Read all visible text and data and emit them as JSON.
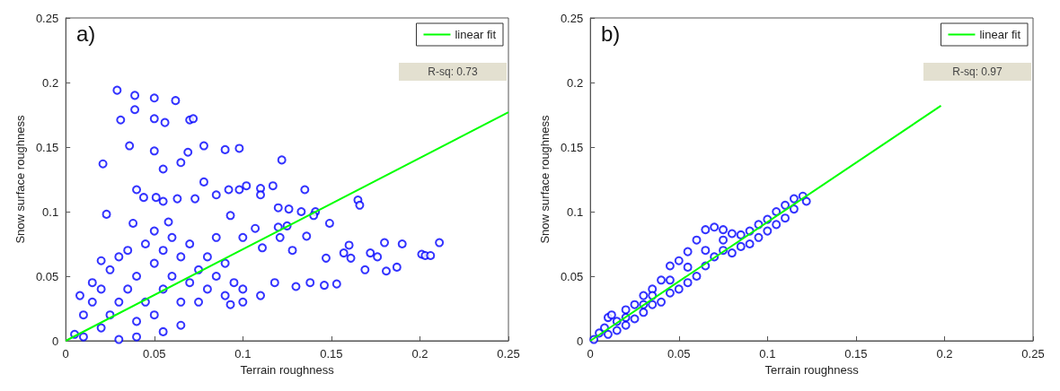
{
  "chart_data": [
    {
      "type": "scatter",
      "title": "a)",
      "xlabel": "Terrain roughness",
      "ylabel": "Snow surface roughness",
      "annotations": [
        "R-sq: 0.73"
      ],
      "xlim": [
        0,
        0.25
      ],
      "ylim": [
        0,
        0.25
      ],
      "xticks": [
        0,
        0.05,
        0.1,
        0.15,
        0.2,
        0.25
      ],
      "yticks": [
        0,
        0.05,
        0.1,
        0.15,
        0.2,
        0.25
      ],
      "grid": false,
      "legend": "top right",
      "series": [
        {
          "type": "scatter",
          "color": "#0000ff",
          "marker": "circle",
          "x": [
            0.029,
            0.039,
            0.05,
            0.062,
            0.039,
            0.031,
            0.05,
            0.056,
            0.07,
            0.072,
            0.036,
            0.05,
            0.069,
            0.078,
            0.09,
            0.098,
            0.021,
            0.055,
            0.065,
            0.122,
            0.078,
            0.04,
            0.044,
            0.051,
            0.055,
            0.063,
            0.073,
            0.085,
            0.092,
            0.098,
            0.102,
            0.11,
            0.11,
            0.117,
            0.135,
            0.165,
            0.166,
            0.023,
            0.038,
            0.12,
            0.126,
            0.133,
            0.141,
            0.14,
            0.149,
            0.093,
            0.16,
            0.18,
            0.19,
            0.201,
            0.203,
            0.211,
            0.206,
            0.172,
            0.176,
            0.169,
            0.181,
            0.187,
            0.147,
            0.157,
            0.161,
            0.146,
            0.153,
            0.138,
            0.13,
            0.136,
            0.128,
            0.121,
            0.111,
            0.107,
            0.12,
            0.125,
            0.1,
            0.1,
            0.11,
            0.118,
            0.1,
            0.093,
            0.065,
            0.055,
            0.04,
            0.03,
            0.005,
            0.01,
            0.01,
            0.015,
            0.02,
            0.02,
            0.025,
            0.025,
            0.03,
            0.03,
            0.035,
            0.035,
            0.04,
            0.04,
            0.045,
            0.045,
            0.05,
            0.05,
            0.055,
            0.055,
            0.06,
            0.06,
            0.065,
            0.065,
            0.07,
            0.07,
            0.075,
            0.075,
            0.08,
            0.08,
            0.085,
            0.085,
            0.09,
            0.09,
            0.095,
            0.015,
            0.02,
            0.008,
            0.05,
            0.058
          ],
          "values": [
            0.194,
            0.19,
            0.188,
            0.186,
            0.179,
            0.171,
            0.172,
            0.169,
            0.171,
            0.172,
            0.151,
            0.147,
            0.146,
            0.151,
            0.148,
            0.149,
            0.137,
            0.133,
            0.138,
            0.14,
            0.123,
            0.117,
            0.111,
            0.111,
            0.108,
            0.11,
            0.11,
            0.113,
            0.117,
            0.117,
            0.12,
            0.118,
            0.113,
            0.12,
            0.117,
            0.109,
            0.105,
            0.098,
            0.091,
            0.103,
            0.102,
            0.1,
            0.1,
            0.097,
            0.091,
            0.097,
            0.074,
            0.076,
            0.075,
            0.067,
            0.066,
            0.076,
            0.066,
            0.068,
            0.065,
            0.055,
            0.054,
            0.057,
            0.064,
            0.068,
            0.064,
            0.043,
            0.044,
            0.045,
            0.042,
            0.081,
            0.07,
            0.08,
            0.072,
            0.087,
            0.088,
            0.089,
            0.08,
            0.04,
            0.035,
            0.045,
            0.03,
            0.028,
            0.012,
            0.007,
            0.003,
            0.001,
            0.005,
            0.02,
            0.003,
            0.03,
            0.01,
            0.04,
            0.02,
            0.055,
            0.03,
            0.065,
            0.04,
            0.07,
            0.015,
            0.05,
            0.075,
            0.03,
            0.06,
            0.02,
            0.07,
            0.04,
            0.05,
            0.08,
            0.03,
            0.065,
            0.045,
            0.075,
            0.055,
            0.03,
            0.065,
            0.04,
            0.05,
            0.08,
            0.06,
            0.035,
            0.045,
            0.045,
            0.062,
            0.035,
            0.085,
            0.092
          ]
        },
        {
          "type": "line",
          "name": "linear fit",
          "color": "#00ff00",
          "marker": "none",
          "x": [
            0,
            0.25
          ],
          "values": [
            0,
            0.177
          ]
        }
      ]
    },
    {
      "type": "scatter",
      "title": "b)",
      "xlabel": "Terrain roughness",
      "ylabel": "Snow surface roughness",
      "annotations": [
        "R-sq: 0.97"
      ],
      "xlim": [
        0,
        0.25
      ],
      "ylim": [
        0,
        0.25
      ],
      "xticks": [
        0,
        0.05,
        0.1,
        0.15,
        0.2,
        0.25
      ],
      "yticks": [
        0,
        0.05,
        0.1,
        0.15,
        0.2,
        0.25
      ],
      "grid": false,
      "legend": "top right",
      "series": [
        {
          "type": "scatter",
          "color": "#0000ff",
          "marker": "circle",
          "x": [
            0.002,
            0.005,
            0.008,
            0.01,
            0.012,
            0.01,
            0.015,
            0.02,
            0.02,
            0.025,
            0.025,
            0.03,
            0.03,
            0.035,
            0.035,
            0.04,
            0.04,
            0.045,
            0.045,
            0.05,
            0.05,
            0.055,
            0.055,
            0.06,
            0.06,
            0.065,
            0.065,
            0.07,
            0.07,
            0.075,
            0.075,
            0.08,
            0.08,
            0.085,
            0.085,
            0.09,
            0.09,
            0.095,
            0.095,
            0.1,
            0.1,
            0.105,
            0.105,
            0.11,
            0.11,
            0.115,
            0.115,
            0.12,
            0.122,
            0.035,
            0.045,
            0.055,
            0.065,
            0.075,
            0.02,
            0.03,
            0.015
          ],
          "values": [
            0.001,
            0.006,
            0.01,
            0.018,
            0.02,
            0.005,
            0.008,
            0.024,
            0.012,
            0.028,
            0.017,
            0.035,
            0.022,
            0.04,
            0.028,
            0.047,
            0.03,
            0.058,
            0.037,
            0.062,
            0.04,
            0.069,
            0.045,
            0.078,
            0.05,
            0.086,
            0.058,
            0.088,
            0.065,
            0.086,
            0.07,
            0.083,
            0.068,
            0.082,
            0.073,
            0.085,
            0.075,
            0.09,
            0.08,
            0.094,
            0.085,
            0.1,
            0.09,
            0.105,
            0.095,
            0.11,
            0.102,
            0.112,
            0.108,
            0.035,
            0.047,
            0.057,
            0.07,
            0.078,
            0.018,
            0.028,
            0.015
          ]
        },
        {
          "type": "line",
          "name": "linear fit",
          "color": "#00ff00",
          "marker": "none",
          "x": [
            0,
            0.198
          ],
          "values": [
            0,
            0.182
          ]
        }
      ]
    }
  ]
}
